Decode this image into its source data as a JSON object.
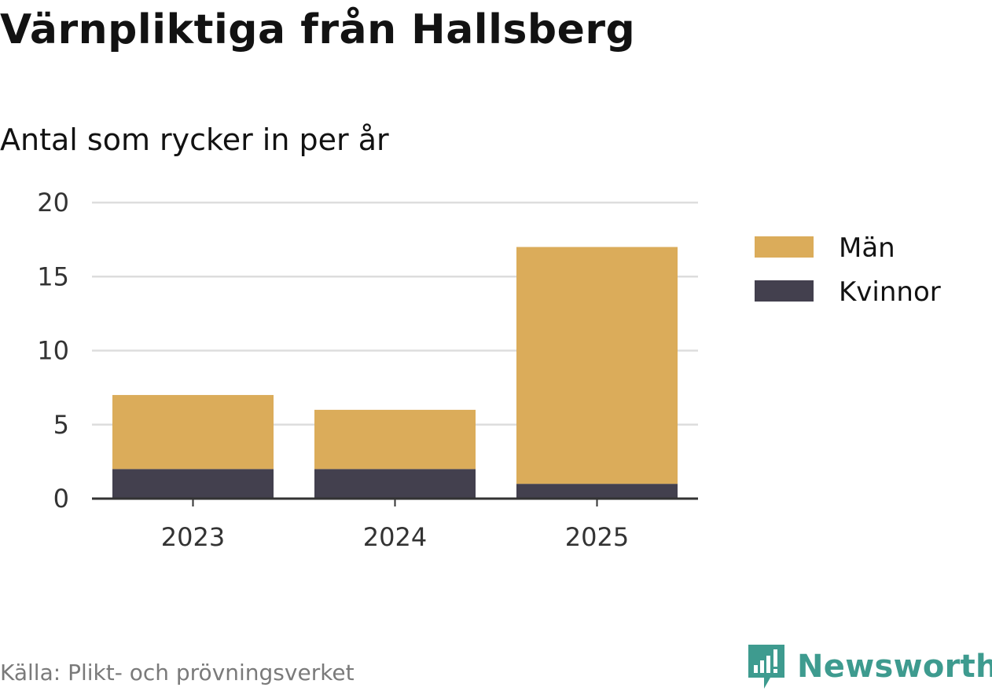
{
  "header": {
    "title": "Värnpliktiga från Hallsberg",
    "subtitle": "Antal som rycker in per år"
  },
  "footer": {
    "source": "Källa: Plikt- och prövningsverket",
    "brand": "Newsworthy",
    "brand_icon": "newsworthy-logo-icon",
    "brand_color": "#3e9b8f"
  },
  "chart_data": {
    "type": "bar",
    "stacked": true,
    "categories": [
      "2023",
      "2024",
      "2025"
    ],
    "series": [
      {
        "name": "Kvinnor",
        "values": [
          2,
          2,
          1
        ],
        "color": "#43404e"
      },
      {
        "name": "Män",
        "values": [
          5,
          4,
          16
        ],
        "color": "#dbac5a"
      }
    ],
    "legend_order": [
      "Män",
      "Kvinnor"
    ],
    "ylim": [
      0,
      20
    ],
    "yticks": [
      0,
      5,
      10,
      15,
      20
    ],
    "grid": true,
    "legend_position": "right",
    "xlabel": "",
    "ylabel": ""
  }
}
